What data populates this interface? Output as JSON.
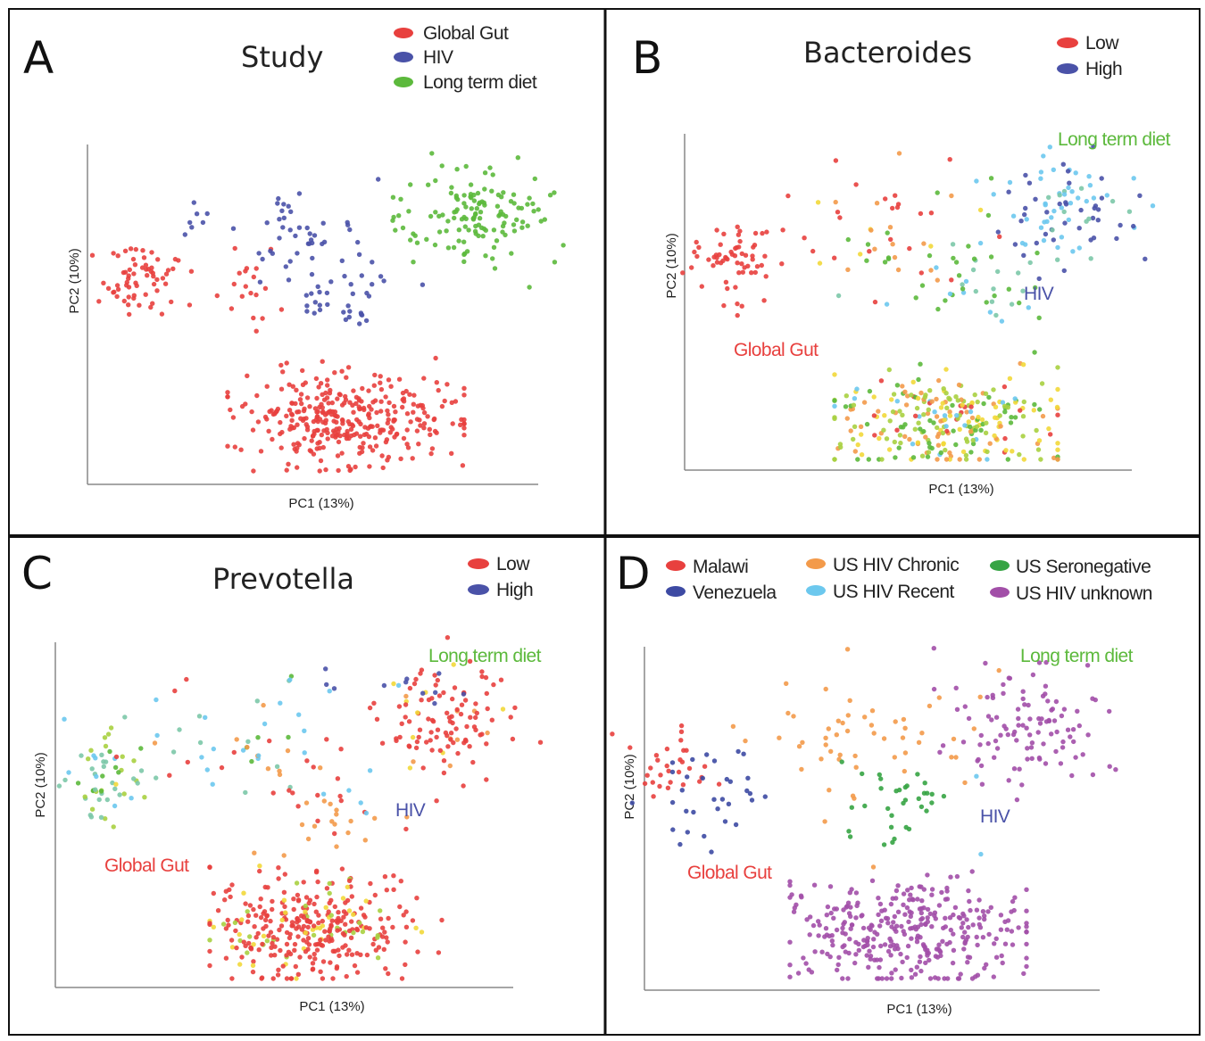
{
  "chart_data": [
    {
      "type": "scatter",
      "panel": "A",
      "title": "Study",
      "xlabel": "PC1 (13%)",
      "ylabel": "PC2 (10%)",
      "legend": [
        {
          "label": "Global Gut",
          "color": "#e8403e"
        },
        {
          "label": "HIV",
          "color": "#4a52a8"
        },
        {
          "label": "Long term diet",
          "color": "#5cb93c"
        }
      ],
      "annotations": []
    },
    {
      "type": "scatter",
      "panel": "B",
      "title": "Bacteroides",
      "xlabel": "PC1 (13%)",
      "ylabel": "PC2 (10%)",
      "legend": [
        {
          "label": "Low",
          "color": "#e8403e"
        },
        {
          "label": "High",
          "color": "#4a52a8"
        }
      ],
      "annotations": [
        {
          "text": "Long term diet",
          "color": "#5cb93c"
        },
        {
          "text": "HIV",
          "color": "#4a52a8"
        },
        {
          "text": "Global Gut",
          "color": "#e8403e"
        }
      ]
    },
    {
      "type": "scatter",
      "panel": "C",
      "title": "Prevotella",
      "xlabel": "PC1 (13%)",
      "ylabel": "PC2 (10%)",
      "legend": [
        {
          "label": "Low",
          "color": "#e8403e"
        },
        {
          "label": "High",
          "color": "#4a52a8"
        }
      ],
      "annotations": [
        {
          "text": "Long term diet",
          "color": "#5cb93c"
        },
        {
          "text": "HIV",
          "color": "#4a52a8"
        },
        {
          "text": "Global Gut",
          "color": "#e8403e"
        }
      ]
    },
    {
      "type": "scatter",
      "panel": "D",
      "title": "",
      "xlabel": "PC1 (13%)",
      "ylabel": "PC2 (10%)",
      "legend": [
        {
          "label": "Malawi",
          "color": "#e8403e"
        },
        {
          "label": "Venezuela",
          "color": "#3d4aa3"
        },
        {
          "label": "US HIV Chronic",
          "color": "#f39a4a"
        },
        {
          "label": "US HIV Recent",
          "color": "#6cc8ee"
        },
        {
          "label": "US Seronegative",
          "color": "#36a444"
        },
        {
          "label": "US HIV unknown",
          "color": "#a24fa8"
        }
      ],
      "annotations": [
        {
          "text": "Long term diet",
          "color": "#5cb93c"
        },
        {
          "text": "HIV",
          "color": "#4a52a8"
        },
        {
          "text": "Global Gut",
          "color": "#e8403e"
        }
      ]
    }
  ]
}
